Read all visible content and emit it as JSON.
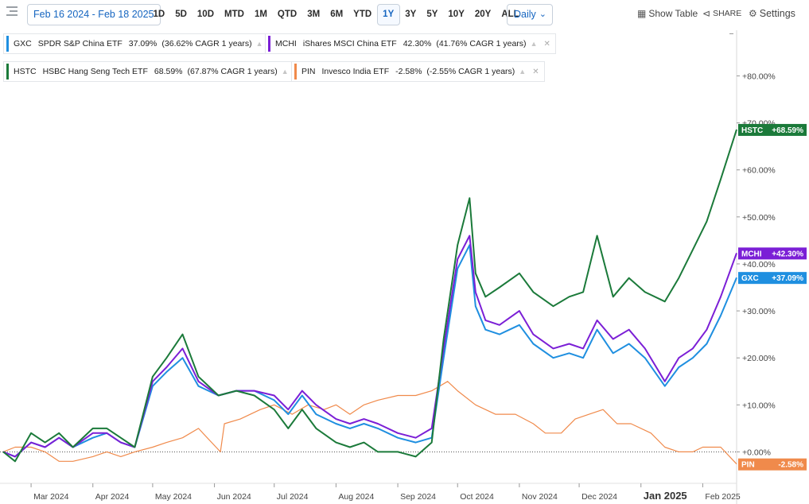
{
  "toolbar": {
    "date_range": "Feb 16 2024 - Feb 18 2025",
    "ranges": [
      "1D",
      "5D",
      "10D",
      "MTD",
      "1M",
      "QTD",
      "3M",
      "6M",
      "YTD",
      "1Y",
      "3Y",
      "5Y",
      "10Y",
      "20Y",
      "ALL"
    ],
    "active_range": "1Y",
    "interval": "Daily",
    "show_table": "Show Table",
    "share": "SHARE",
    "settings": "Settings"
  },
  "legend": [
    {
      "symbol": "GXC",
      "name": "SPDR S&P China ETF",
      "pct": "37.09%",
      "cagr": "(36.62% CAGR 1 years)",
      "color": "#1f8fe0"
    },
    {
      "symbol": "MCHI",
      "name": "iShares MSCI China ETF",
      "pct": "42.30%",
      "cagr": "(41.76% CAGR 1 years)",
      "color": "#7b1fd6"
    },
    {
      "symbol": "HSTC",
      "name": "HSBC Hang Seng Tech ETF",
      "pct": "68.59%",
      "cagr": "(67.87% CAGR 1 years)",
      "color": "#1b7a3a"
    },
    {
      "symbol": "PIN",
      "name": "Invesco India ETF",
      "pct": "-2.58%",
      "cagr": "(-2.55% CAGR 1 years)",
      "color": "#f08a4b"
    }
  ],
  "chart_data": {
    "type": "line",
    "x_ticks": [
      {
        "date": "2024-03-01",
        "label": "Mar 2024"
      },
      {
        "date": "2024-04-01",
        "label": "Apr 2024"
      },
      {
        "date": "2024-05-01",
        "label": "May 2024"
      },
      {
        "date": "2024-06-01",
        "label": "Jun 2024"
      },
      {
        "date": "2024-07-01",
        "label": "Jul 2024"
      },
      {
        "date": "2024-08-01",
        "label": "Aug 2024"
      },
      {
        "date": "2024-09-01",
        "label": "Sep 2024"
      },
      {
        "date": "2024-10-01",
        "label": "Oct 2024"
      },
      {
        "date": "2024-11-01",
        "label": "Nov 2024"
      },
      {
        "date": "2024-12-01",
        "label": "Dec 2024"
      },
      {
        "date": "2025-01-01",
        "label": "Jan 2025",
        "emphasis": true
      },
      {
        "date": "2025-02-01",
        "label": "Feb 2025"
      }
    ],
    "xlim": [
      "2024-02-16",
      "2025-02-18"
    ],
    "y_ticks": [
      {
        "value": 0,
        "label": "+0.00%"
      },
      {
        "value": 10,
        "label": "+10.00%"
      },
      {
        "value": 20,
        "label": "+20.00%"
      },
      {
        "value": 30,
        "label": "+30.00%"
      },
      {
        "value": 40,
        "label": "+40.00%"
      },
      {
        "value": 50,
        "label": "+50.00%"
      },
      {
        "value": 60,
        "label": "+60.00%"
      },
      {
        "value": 70,
        "label": "+70.00%"
      },
      {
        "value": 80,
        "label": "+80.00%"
      }
    ],
    "ylim": [
      -5,
      86
    ],
    "series": [
      {
        "name": "GXC",
        "color": "#1f8fe0",
        "end_label": "GXC",
        "end_value": "+37.09%",
        "points": [
          [
            "2024-02-16",
            0
          ],
          [
            "2024-02-22",
            -1
          ],
          [
            "2024-03-01",
            2
          ],
          [
            "2024-03-08",
            1
          ],
          [
            "2024-03-15",
            3
          ],
          [
            "2024-03-22",
            1
          ],
          [
            "2024-04-01",
            3
          ],
          [
            "2024-04-08",
            4
          ],
          [
            "2024-04-15",
            2
          ],
          [
            "2024-04-22",
            1
          ],
          [
            "2024-05-01",
            14
          ],
          [
            "2024-05-08",
            17
          ],
          [
            "2024-05-16",
            20
          ],
          [
            "2024-05-24",
            14
          ],
          [
            "2024-06-03",
            12
          ],
          [
            "2024-06-12",
            13
          ],
          [
            "2024-06-21",
            13
          ],
          [
            "2024-07-01",
            11
          ],
          [
            "2024-07-08",
            8
          ],
          [
            "2024-07-15",
            12
          ],
          [
            "2024-07-22",
            8
          ],
          [
            "2024-08-01",
            6
          ],
          [
            "2024-08-08",
            5
          ],
          [
            "2024-08-15",
            6
          ],
          [
            "2024-08-22",
            5
          ],
          [
            "2024-09-01",
            3
          ],
          [
            "2024-09-10",
            2
          ],
          [
            "2024-09-18",
            3
          ],
          [
            "2024-09-24",
            20
          ],
          [
            "2024-10-01",
            39
          ],
          [
            "2024-10-07",
            44
          ],
          [
            "2024-10-10",
            31
          ],
          [
            "2024-10-15",
            26
          ],
          [
            "2024-10-22",
            25
          ],
          [
            "2024-11-01",
            27
          ],
          [
            "2024-11-08",
            23
          ],
          [
            "2024-11-18",
            20
          ],
          [
            "2024-11-26",
            21
          ],
          [
            "2024-12-03",
            20
          ],
          [
            "2024-12-10",
            26
          ],
          [
            "2024-12-18",
            21
          ],
          [
            "2024-12-26",
            23
          ],
          [
            "2025-01-03",
            20
          ],
          [
            "2025-01-13",
            14
          ],
          [
            "2025-01-20",
            18
          ],
          [
            "2025-01-27",
            20
          ],
          [
            "2025-02-03",
            23
          ],
          [
            "2025-02-10",
            29
          ],
          [
            "2025-02-18",
            37.09
          ]
        ]
      },
      {
        "name": "MCHI",
        "color": "#7b1fd6",
        "end_label": "MCHI",
        "end_value": "+42.30%",
        "points": [
          [
            "2024-02-16",
            0
          ],
          [
            "2024-02-22",
            -1
          ],
          [
            "2024-03-01",
            2
          ],
          [
            "2024-03-08",
            1
          ],
          [
            "2024-03-15",
            3
          ],
          [
            "2024-03-22",
            1
          ],
          [
            "2024-04-01",
            4
          ],
          [
            "2024-04-08",
            4
          ],
          [
            "2024-04-15",
            2
          ],
          [
            "2024-04-22",
            1
          ],
          [
            "2024-05-01",
            15
          ],
          [
            "2024-05-08",
            18
          ],
          [
            "2024-05-16",
            22
          ],
          [
            "2024-05-24",
            15
          ],
          [
            "2024-06-03",
            12
          ],
          [
            "2024-06-12",
            13
          ],
          [
            "2024-06-21",
            13
          ],
          [
            "2024-07-01",
            12
          ],
          [
            "2024-07-08",
            9
          ],
          [
            "2024-07-15",
            13
          ],
          [
            "2024-07-22",
            10
          ],
          [
            "2024-08-01",
            7
          ],
          [
            "2024-08-08",
            6
          ],
          [
            "2024-08-15",
            7
          ],
          [
            "2024-08-22",
            6
          ],
          [
            "2024-09-01",
            4
          ],
          [
            "2024-09-10",
            3
          ],
          [
            "2024-09-18",
            5
          ],
          [
            "2024-09-24",
            22
          ],
          [
            "2024-10-01",
            41
          ],
          [
            "2024-10-07",
            46
          ],
          [
            "2024-10-10",
            34
          ],
          [
            "2024-10-15",
            28
          ],
          [
            "2024-10-22",
            27
          ],
          [
            "2024-11-01",
            30
          ],
          [
            "2024-11-08",
            25
          ],
          [
            "2024-11-18",
            22
          ],
          [
            "2024-11-26",
            23
          ],
          [
            "2024-12-03",
            22
          ],
          [
            "2024-12-10",
            28
          ],
          [
            "2024-12-18",
            24
          ],
          [
            "2024-12-26",
            26
          ],
          [
            "2025-01-03",
            22
          ],
          [
            "2025-01-13",
            15
          ],
          [
            "2025-01-20",
            20
          ],
          [
            "2025-01-27",
            22
          ],
          [
            "2025-02-03",
            26
          ],
          [
            "2025-02-10",
            33
          ],
          [
            "2025-02-18",
            42.3
          ]
        ]
      },
      {
        "name": "HSTC",
        "color": "#1b7a3a",
        "end_label": "HSTC",
        "end_value": "+68.59%",
        "points": [
          [
            "2024-02-16",
            0
          ],
          [
            "2024-02-22",
            -2
          ],
          [
            "2024-03-01",
            4
          ],
          [
            "2024-03-08",
            2
          ],
          [
            "2024-03-15",
            4
          ],
          [
            "2024-03-22",
            1
          ],
          [
            "2024-04-01",
            5
          ],
          [
            "2024-04-08",
            5
          ],
          [
            "2024-04-15",
            3
          ],
          [
            "2024-04-22",
            1
          ],
          [
            "2024-05-01",
            16
          ],
          [
            "2024-05-08",
            20
          ],
          [
            "2024-05-16",
            25
          ],
          [
            "2024-05-24",
            16
          ],
          [
            "2024-06-03",
            12
          ],
          [
            "2024-06-12",
            13
          ],
          [
            "2024-06-21",
            12
          ],
          [
            "2024-07-01",
            9
          ],
          [
            "2024-07-08",
            5
          ],
          [
            "2024-07-15",
            9
          ],
          [
            "2024-07-22",
            5
          ],
          [
            "2024-08-01",
            2
          ],
          [
            "2024-08-08",
            1
          ],
          [
            "2024-08-15",
            2
          ],
          [
            "2024-08-22",
            0
          ],
          [
            "2024-09-01",
            0
          ],
          [
            "2024-09-10",
            -1
          ],
          [
            "2024-09-18",
            2
          ],
          [
            "2024-09-24",
            24
          ],
          [
            "2024-10-01",
            44
          ],
          [
            "2024-10-07",
            54
          ],
          [
            "2024-10-10",
            38
          ],
          [
            "2024-10-15",
            33
          ],
          [
            "2024-10-22",
            35
          ],
          [
            "2024-11-01",
            38
          ],
          [
            "2024-11-08",
            34
          ],
          [
            "2024-11-18",
            31
          ],
          [
            "2024-11-26",
            33
          ],
          [
            "2024-12-03",
            34
          ],
          [
            "2024-12-10",
            46
          ],
          [
            "2024-12-18",
            33
          ],
          [
            "2024-12-26",
            37
          ],
          [
            "2025-01-03",
            34
          ],
          [
            "2025-01-13",
            32
          ],
          [
            "2025-01-20",
            37
          ],
          [
            "2025-01-27",
            43
          ],
          [
            "2025-02-03",
            49
          ],
          [
            "2025-02-10",
            58
          ],
          [
            "2025-02-18",
            68.59
          ]
        ]
      },
      {
        "name": "PIN",
        "color": "#f08a4b",
        "end_label": "PIN",
        "end_value": "-2.58%",
        "points": [
          [
            "2024-02-16",
            0
          ],
          [
            "2024-02-22",
            1
          ],
          [
            "2024-03-01",
            1
          ],
          [
            "2024-03-08",
            0
          ],
          [
            "2024-03-15",
            -2
          ],
          [
            "2024-03-22",
            -2
          ],
          [
            "2024-04-01",
            -1
          ],
          [
            "2024-04-08",
            0
          ],
          [
            "2024-04-15",
            -1
          ],
          [
            "2024-04-22",
            0
          ],
          [
            "2024-05-01",
            1
          ],
          [
            "2024-05-08",
            2
          ],
          [
            "2024-05-16",
            3
          ],
          [
            "2024-05-24",
            5
          ],
          [
            "2024-06-04",
            0
          ],
          [
            "2024-06-06",
            6
          ],
          [
            "2024-06-14",
            7
          ],
          [
            "2024-06-24",
            9
          ],
          [
            "2024-07-01",
            10
          ],
          [
            "2024-07-10",
            8
          ],
          [
            "2024-07-18",
            10
          ],
          [
            "2024-07-26",
            9
          ],
          [
            "2024-08-01",
            10
          ],
          [
            "2024-08-08",
            8
          ],
          [
            "2024-08-15",
            10
          ],
          [
            "2024-08-22",
            11
          ],
          [
            "2024-09-01",
            12
          ],
          [
            "2024-09-10",
            12
          ],
          [
            "2024-09-18",
            13
          ],
          [
            "2024-09-26",
            15
          ],
          [
            "2024-10-01",
            13
          ],
          [
            "2024-10-10",
            10
          ],
          [
            "2024-10-20",
            8
          ],
          [
            "2024-10-30",
            8
          ],
          [
            "2024-11-08",
            6
          ],
          [
            "2024-11-14",
            4
          ],
          [
            "2024-11-22",
            4
          ],
          [
            "2024-11-29",
            7
          ],
          [
            "2024-12-06",
            8
          ],
          [
            "2024-12-13",
            9
          ],
          [
            "2024-12-20",
            6
          ],
          [
            "2024-12-27",
            6
          ],
          [
            "2025-01-06",
            4
          ],
          [
            "2025-01-13",
            1
          ],
          [
            "2025-01-20",
            0
          ],
          [
            "2025-01-27",
            0
          ],
          [
            "2025-02-01",
            1
          ],
          [
            "2025-02-10",
            1
          ],
          [
            "2025-02-18",
            -2.58
          ]
        ]
      }
    ]
  }
}
